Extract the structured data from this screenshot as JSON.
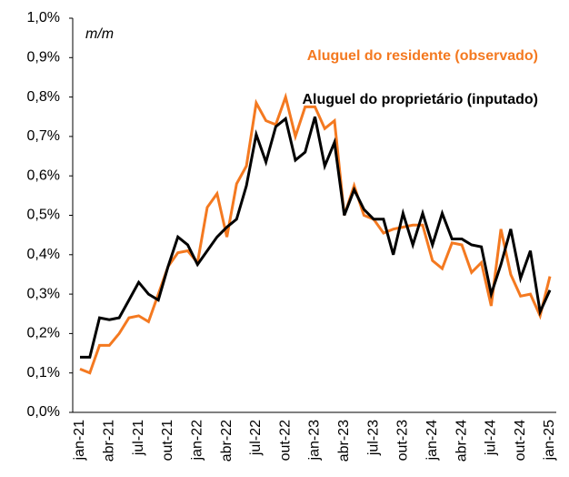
{
  "chart_data": {
    "type": "line",
    "annotation": "m/m",
    "categories": [
      "jan-21",
      null,
      null,
      "abr-21",
      null,
      null,
      "jul-21",
      null,
      null,
      "out-21",
      null,
      null,
      "jan-22",
      null,
      null,
      "abr-22",
      null,
      null,
      "jul-22",
      null,
      null,
      "out-22",
      null,
      null,
      "jan-23",
      null,
      null,
      "abr-23",
      null,
      null,
      "jul-23",
      null,
      null,
      "out-23",
      null,
      null,
      "jan-24",
      null,
      null,
      "abr-24",
      null,
      null,
      "jul-24",
      null,
      null,
      "out-24",
      null,
      null,
      "jan-25"
    ],
    "series": [
      {
        "name": "Aluguel do residente (observado)",
        "color": "#f47920",
        "values": [
          0.11,
          0.1,
          0.17,
          0.17,
          0.2,
          0.24,
          0.245,
          0.23,
          0.3,
          0.37,
          0.405,
          0.41,
          0.38,
          0.52,
          0.555,
          0.445,
          0.58,
          0.625,
          0.785,
          0.74,
          0.73,
          0.8,
          0.7,
          0.775,
          0.775,
          0.72,
          0.74,
          0.5,
          0.575,
          0.5,
          0.49,
          0.455,
          0.465,
          0.47,
          0.475,
          0.475,
          0.385,
          0.365,
          0.43,
          0.425,
          0.355,
          0.38,
          0.27,
          0.465,
          0.35,
          0.295,
          0.3,
          0.245,
          0.345
        ]
      },
      {
        "name": "Aluguel do proprietário (inputado)",
        "color": "#000000",
        "values": [
          0.14,
          0.14,
          0.24,
          0.235,
          0.24,
          0.285,
          0.33,
          0.3,
          0.285,
          0.37,
          0.445,
          0.425,
          0.375,
          0.41,
          0.445,
          0.47,
          0.49,
          0.575,
          0.705,
          0.635,
          0.725,
          0.745,
          0.64,
          0.66,
          0.75,
          0.625,
          0.685,
          0.5,
          0.565,
          0.515,
          0.49,
          0.49,
          0.4,
          0.505,
          0.425,
          0.505,
          0.425,
          0.505,
          0.44,
          0.44,
          0.425,
          0.42,
          0.3,
          0.375,
          0.465,
          0.34,
          0.41,
          0.255,
          0.31
        ]
      }
    ],
    "ylim": [
      0,
      1.0
    ],
    "yticks": [
      {
        "value": 0,
        "label": "0,0%"
      },
      {
        "value": 0.1,
        "label": "0,1%"
      },
      {
        "value": 0.2,
        "label": "0,2%"
      },
      {
        "value": 0.3,
        "label": "0,3%"
      },
      {
        "value": 0.4,
        "label": "0,4%"
      },
      {
        "value": 0.5,
        "label": "0,5%"
      },
      {
        "value": 0.6,
        "label": "0,6%"
      },
      {
        "value": 0.7,
        "label": "0,7%"
      },
      {
        "value": 0.8,
        "label": "0,8%"
      },
      {
        "value": 0.9,
        "label": "0,9%"
      },
      {
        "value": 1.0,
        "label": "1,0%"
      }
    ],
    "grid": false
  }
}
